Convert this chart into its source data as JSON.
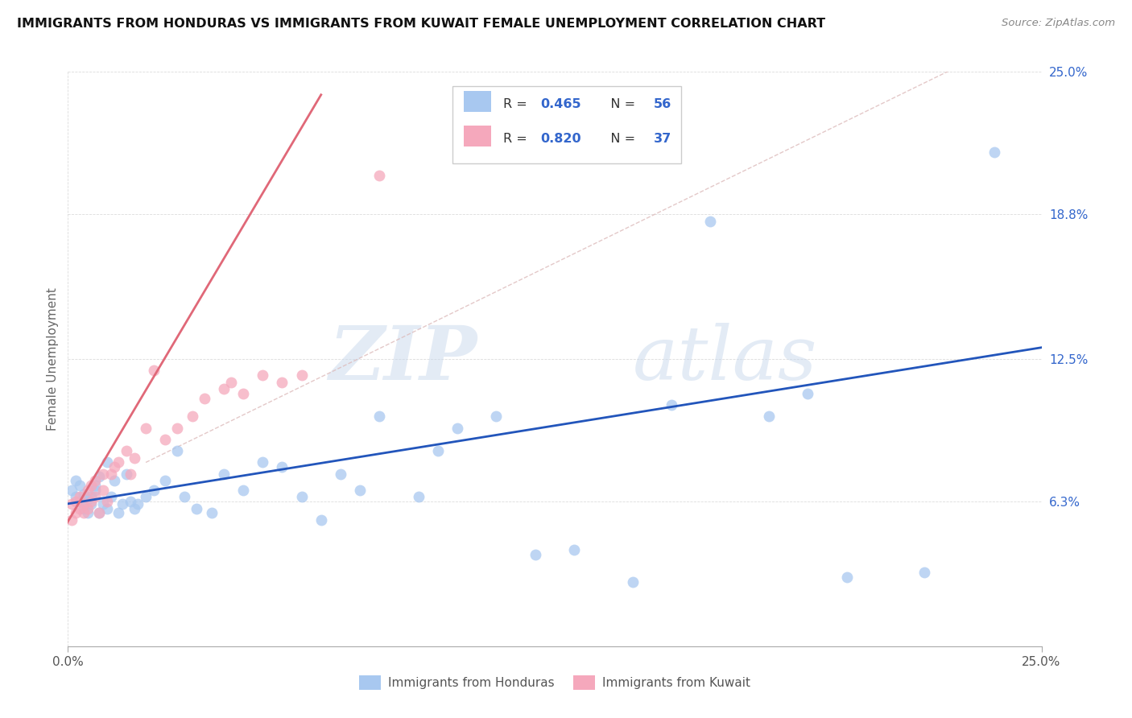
{
  "title": "IMMIGRANTS FROM HONDURAS VS IMMIGRANTS FROM KUWAIT FEMALE UNEMPLOYMENT CORRELATION CHART",
  "source": "Source: ZipAtlas.com",
  "ylabel": "Female Unemployment",
  "xlim": [
    0.0,
    0.25
  ],
  "ylim": [
    0.0,
    0.25
  ],
  "grid_color": "#cccccc",
  "background_color": "#ffffff",
  "honduras_color": "#a8c8f0",
  "kuwait_color": "#f5a8bc",
  "trend_honduras_color": "#2255bb",
  "trend_kuwait_color": "#e06878",
  "trend_diag_color": "#ccbbbb",
  "R_honduras": 0.465,
  "N_honduras": 56,
  "R_kuwait": 0.82,
  "N_kuwait": 37,
  "watermark_zip": "ZIP",
  "watermark_atlas": "atlas",
  "legend_label_honduras": "Immigrants from Honduras",
  "legend_label_kuwait": "Immigrants from Kuwait",
  "ytick_values": [
    0.063,
    0.125,
    0.188,
    0.25
  ],
  "ytick_labels": [
    "6.3%",
    "12.5%",
    "18.8%",
    "25.0%"
  ],
  "legend_R_color": "#3366cc",
  "legend_N_color": "#333333",
  "legend_val_color": "#3366cc"
}
